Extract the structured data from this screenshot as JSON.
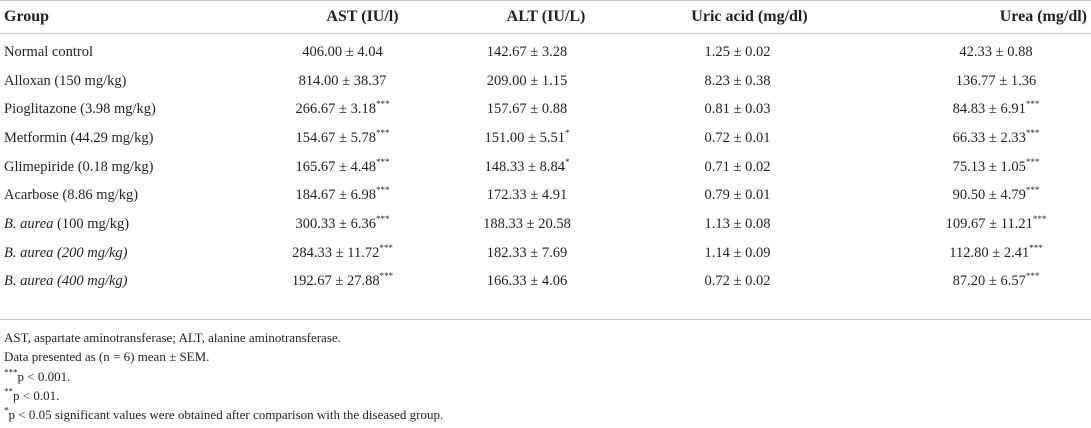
{
  "table": {
    "headers": [
      "Group",
      "AST (IU/l)",
      "ALT (IU/L)",
      "Uric acid (mg/dl)",
      "Urea (mg/dl)"
    ],
    "rows": [
      {
        "group": "Normal control",
        "group_italic": "",
        "group_rest": "",
        "ast": "406.00 ± 4.04",
        "ast_sig": "",
        "alt": "142.67 ± 3.28",
        "alt_sig": "",
        "uric": "1.25 ± 0.02",
        "uric_sig": "",
        "urea": "42.33 ± 0.88",
        "urea_sig": ""
      },
      {
        "group": "Alloxan (150 mg/kg)",
        "group_italic": "",
        "group_rest": "",
        "ast": "814.00 ± 38.37",
        "ast_sig": "",
        "alt": "209.00 ± 1.15",
        "alt_sig": "",
        "uric": "8.23 ± 0.38",
        "uric_sig": "",
        "urea": "136.77 ± 1.36",
        "urea_sig": ""
      },
      {
        "group": "Pioglitazone (3.98 mg/kg)",
        "group_italic": "",
        "group_rest": "",
        "ast": "266.67 ± 3.18",
        "ast_sig": "***",
        "alt": "157.67 ± 0.88",
        "alt_sig": "",
        "uric": "0.81 ± 0.03",
        "uric_sig": "",
        "urea": "84.83 ± 6.91",
        "urea_sig": "***"
      },
      {
        "group": "Metformin (44.29 mg/kg)",
        "group_italic": "",
        "group_rest": "",
        "ast": "154.67 ± 5.78",
        "ast_sig": "***",
        "alt": "151.00 ± 5.51",
        "alt_sig": "*",
        "uric": "0.72 ± 0.01",
        "uric_sig": "",
        "urea": "66.33 ± 2.33",
        "urea_sig": "***"
      },
      {
        "group": "Glimepiride (0.18 mg/kg)",
        "group_italic": "",
        "group_rest": "",
        "ast": "165.67 ± 4.48",
        "ast_sig": "***",
        "alt": "148.33 ± 8.84",
        "alt_sig": "*",
        "uric": "0.71 ± 0.02",
        "uric_sig": "",
        "urea": "75.13 ± 1.05",
        "urea_sig": "***"
      },
      {
        "group": "Acarbose (8.86 mg/kg)",
        "group_italic": "",
        "group_rest": "",
        "ast": "184.67 ± 6.98",
        "ast_sig": "***",
        "alt": "172.33 ± 4.91",
        "alt_sig": "",
        "uric": "0.79 ± 0.01",
        "uric_sig": "",
        "urea": "90.50 ± 4.79",
        "urea_sig": "***"
      },
      {
        "group": "",
        "group_italic": "B. aurea",
        "group_rest": " (100 mg/kg)",
        "ast": "300.33 ± 6.36",
        "ast_sig": "***",
        "alt": "188.33 ± 20.58",
        "alt_sig": "",
        "uric": "1.13 ± 0.08",
        "uric_sig": "",
        "urea": "109.67 ± 11.21",
        "urea_sig": "***"
      },
      {
        "group": "",
        "group_italic": "B. aurea (200 mg/kg)",
        "group_rest": "",
        "ast": "284.33 ± 11.72",
        "ast_sig": "***",
        "alt": "182.33 ± 7.69",
        "alt_sig": "",
        "uric": "1.14 ± 0.09",
        "uric_sig": "",
        "urea": "112.80 ± 2.41",
        "urea_sig": "***"
      },
      {
        "group": "",
        "group_italic": "B. aurea (400 mg/kg)",
        "group_rest": "",
        "ast": "192.67 ± 27.88",
        "ast_sig": "***",
        "alt": "166.33 ± 4.06",
        "alt_sig": "",
        "uric": "0.72 ± 0.02",
        "uric_sig": "",
        "urea": "87.20 ± 6.57",
        "urea_sig": "***"
      }
    ]
  },
  "footnotes": [
    {
      "sup": "",
      "text": "AST, aspartate aminotransferase; ALT, alanine aminotransferase."
    },
    {
      "sup": "",
      "text": "Data presented as (n = 6) mean ± SEM."
    },
    {
      "sup": "***",
      "text": "p < 0.001."
    },
    {
      "sup": "**",
      "text": "p < 0.01."
    },
    {
      "sup": "*",
      "text": "p < 0.05 significant values were obtained after comparison with the diseased group."
    }
  ],
  "colors": {
    "text": "#231f20",
    "rule": "#c8c8c8",
    "background": "#ffffff"
  }
}
